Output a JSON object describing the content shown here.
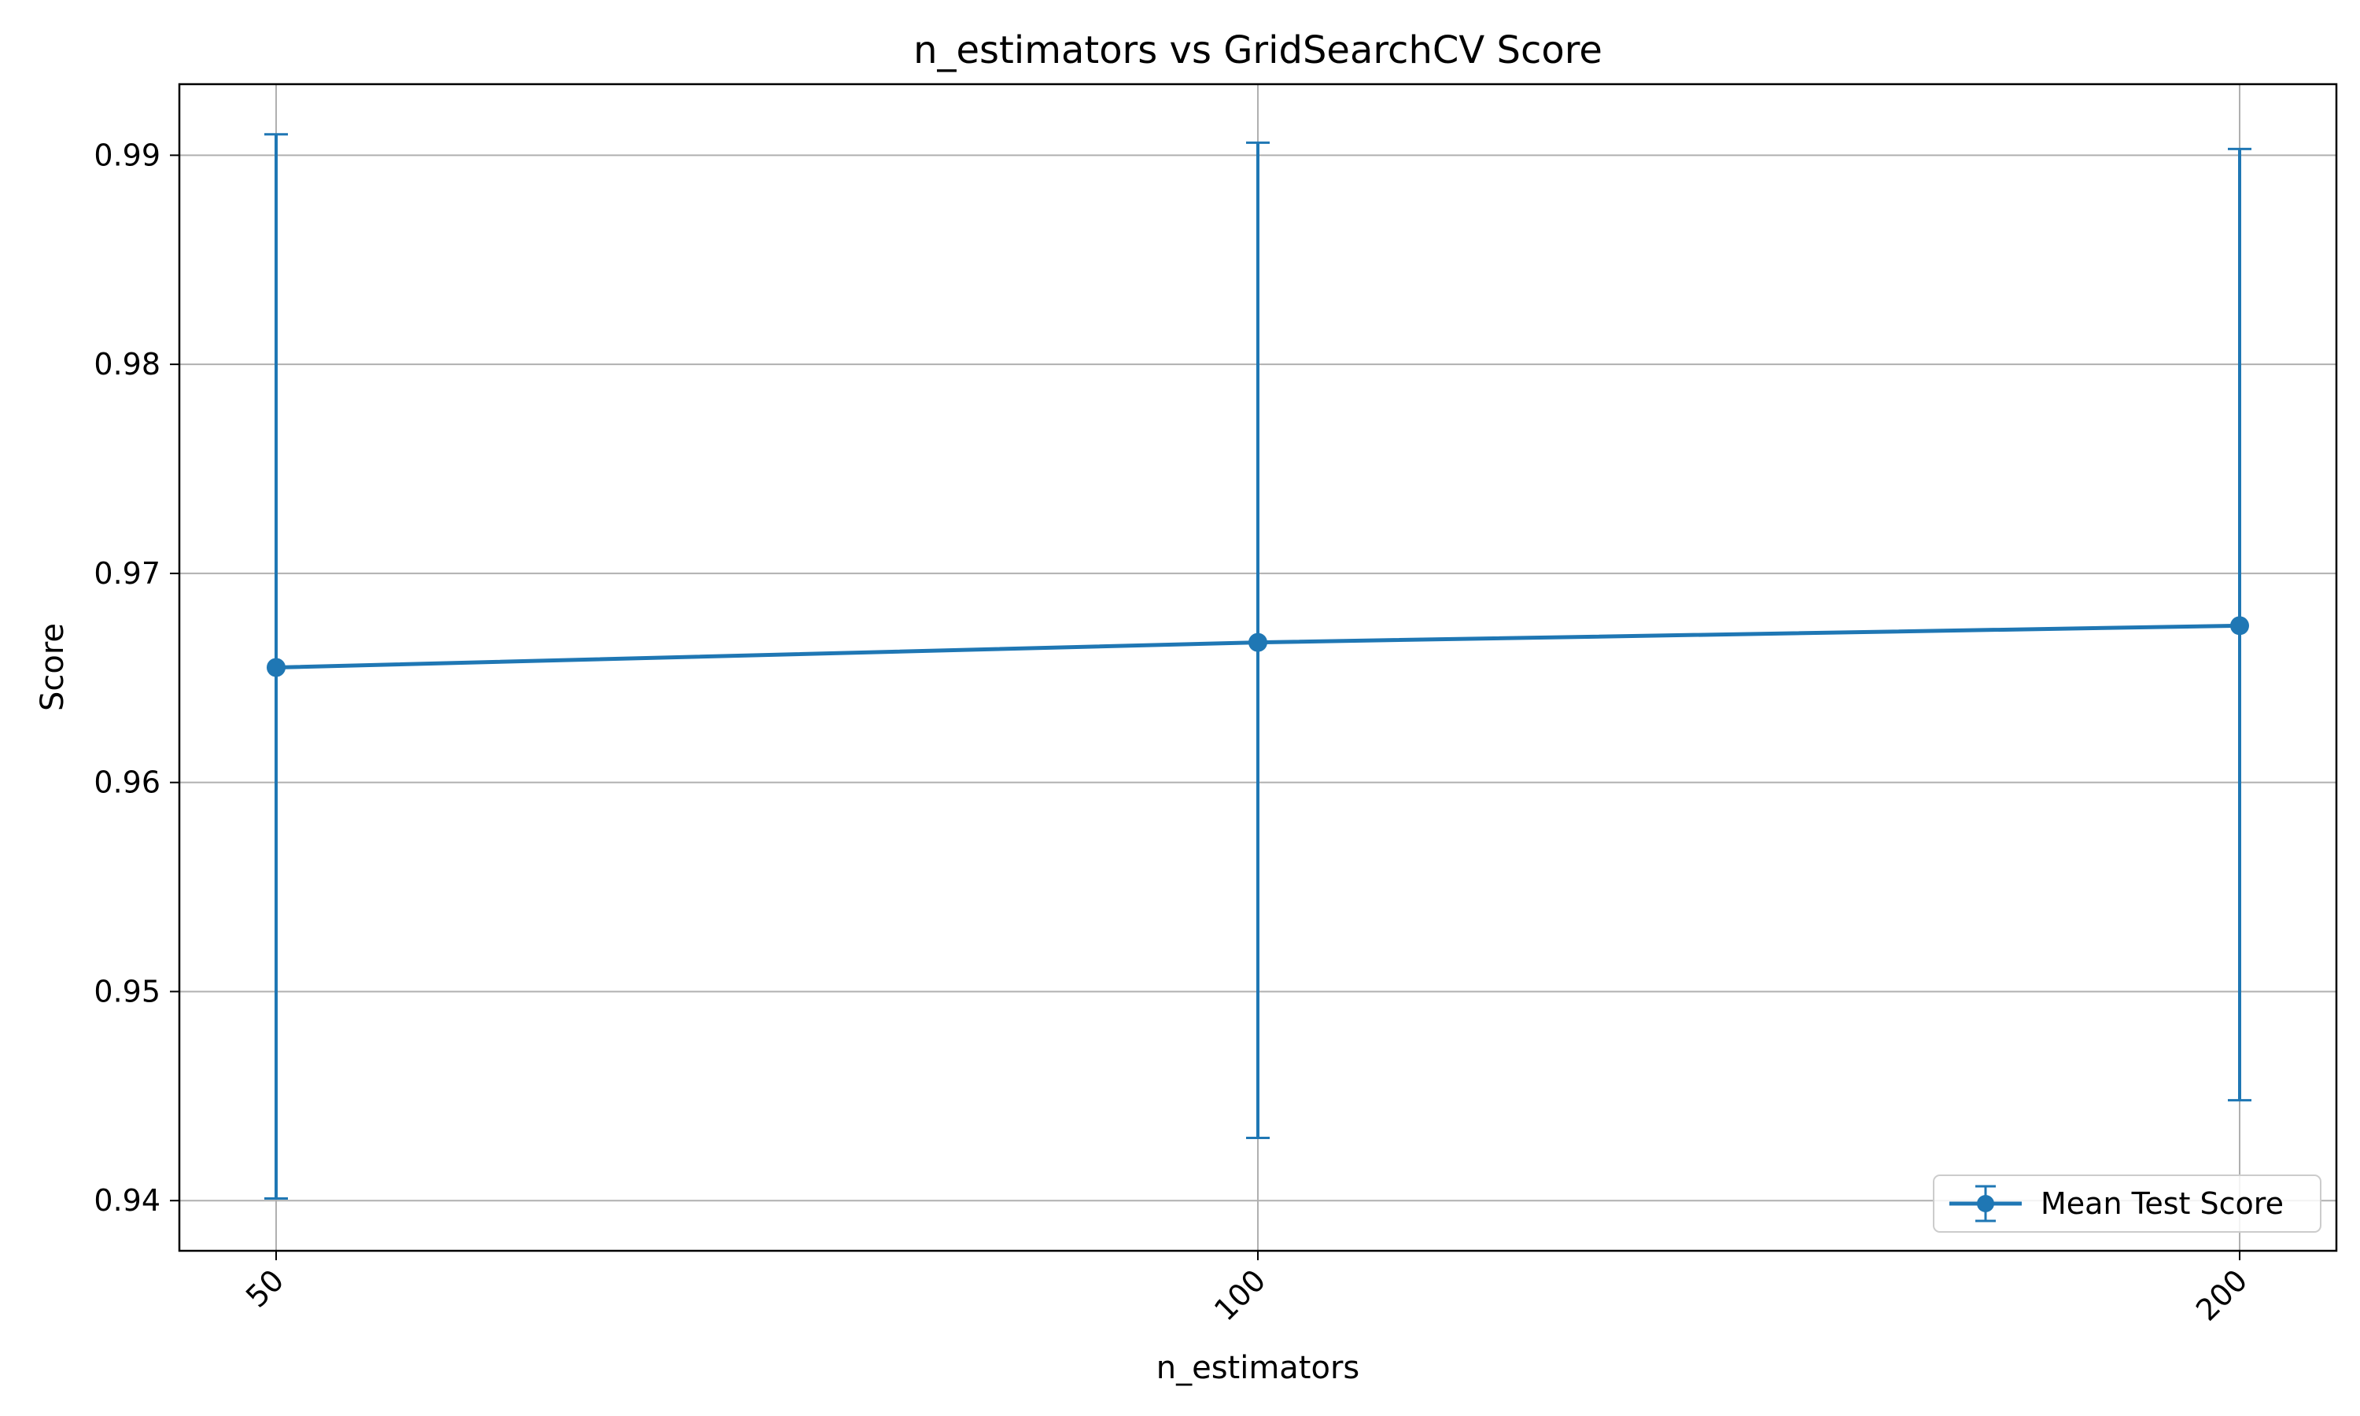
{
  "chart_data": {
    "type": "line",
    "title": "n_estimators vs GridSearchCV Score",
    "xlabel": "n_estimators",
    "ylabel": "Score",
    "categories": [
      "50",
      "100",
      "200"
    ],
    "series": [
      {
        "name": "Mean Test Score",
        "values": [
          0.9655,
          0.9667,
          0.9675
        ],
        "error_lower": [
          0.9401,
          0.943,
          0.9448
        ],
        "error_upper": [
          0.991,
          0.9906,
          0.9903
        ],
        "color": "#1f77b4"
      }
    ],
    "ylim": [
      0.9376,
      0.9934
    ],
    "yticks": [
      "0.94",
      "0.95",
      "0.96",
      "0.97",
      "0.98",
      "0.99"
    ],
    "grid": true,
    "legend_position": "lower-right",
    "x_tick_rotation": "45°"
  }
}
